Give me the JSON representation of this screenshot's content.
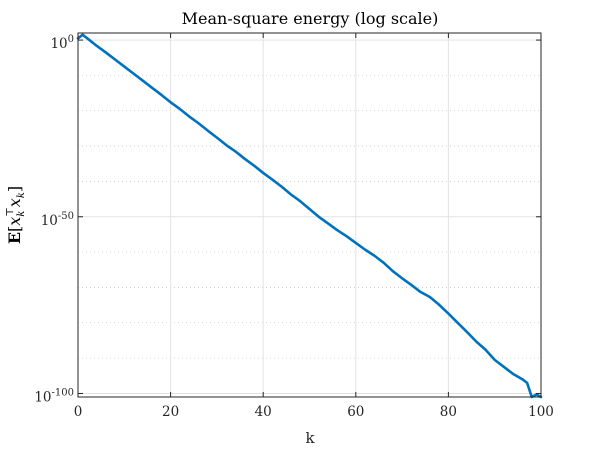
{
  "chart_data": {
    "type": "line",
    "title": "Mean-square energy (log scale)",
    "xlabel": "k",
    "ylabel": "E[x_k^T x_k]",
    "ylabel_parts": {
      "bold_e": "E",
      "open": "[",
      "x1": "x",
      "sub1": "k",
      "sup1": "⊤",
      "x2": "x",
      "sub2": "k",
      "close": "]"
    },
    "xlim": [
      0,
      100
    ],
    "ylim_log10": [
      -101,
      2
    ],
    "y_scale": "log",
    "x_ticks": [
      "0",
      "20",
      "40",
      "60",
      "80",
      "100"
    ],
    "x_tick_values": [
      0,
      20,
      40,
      60,
      80,
      100
    ],
    "y_ticks": [
      {
        "base": "10",
        "exp": "0",
        "value_log10": 0
      },
      {
        "base": "10",
        "exp": "-50",
        "value_log10": -50
      },
      {
        "base": "10",
        "exp": "-100",
        "value_log10": -100
      }
    ],
    "minor_y_gridlines_log10": [
      -10,
      -20,
      -30,
      -40,
      -60,
      -70,
      -80,
      -90
    ],
    "grid": true,
    "line_color": "#0072bd",
    "series": [
      {
        "x": [
          0,
          1,
          2,
          4,
          6,
          8,
          10,
          12,
          14,
          16,
          18,
          20,
          22,
          24,
          26,
          28,
          30,
          32,
          34,
          36,
          38,
          40,
          42,
          44,
          46,
          48,
          50,
          52,
          54,
          56,
          58,
          60,
          62,
          64,
          66,
          68,
          70,
          72,
          74,
          76,
          78,
          80,
          82,
          84,
          86,
          88,
          90,
          92,
          94,
          96,
          97,
          98,
          99,
          100
        ],
        "y_log10": [
          0.5,
          1.5,
          0.5,
          -1.6,
          -3.5,
          -5.5,
          -7.5,
          -9.5,
          -11.5,
          -13.5,
          -15.5,
          -17.6,
          -19.5,
          -21.6,
          -23.5,
          -25.6,
          -27.6,
          -29.7,
          -31.5,
          -33.6,
          -35.5,
          -37.6,
          -39.5,
          -41.5,
          -43.7,
          -45.6,
          -47.8,
          -50.0,
          -51.9,
          -53.8,
          -55.5,
          -57.4,
          -59.3,
          -61.0,
          -63.0,
          -65.4,
          -67.4,
          -69.3,
          -71.3,
          -72.7,
          -74.9,
          -77.4,
          -80.0,
          -82.6,
          -85.3,
          -87.6,
          -90.5,
          -92.5,
          -94.5,
          -96.0,
          -97.0,
          -101.0,
          -100.3,
          -101.0
        ]
      }
    ]
  }
}
